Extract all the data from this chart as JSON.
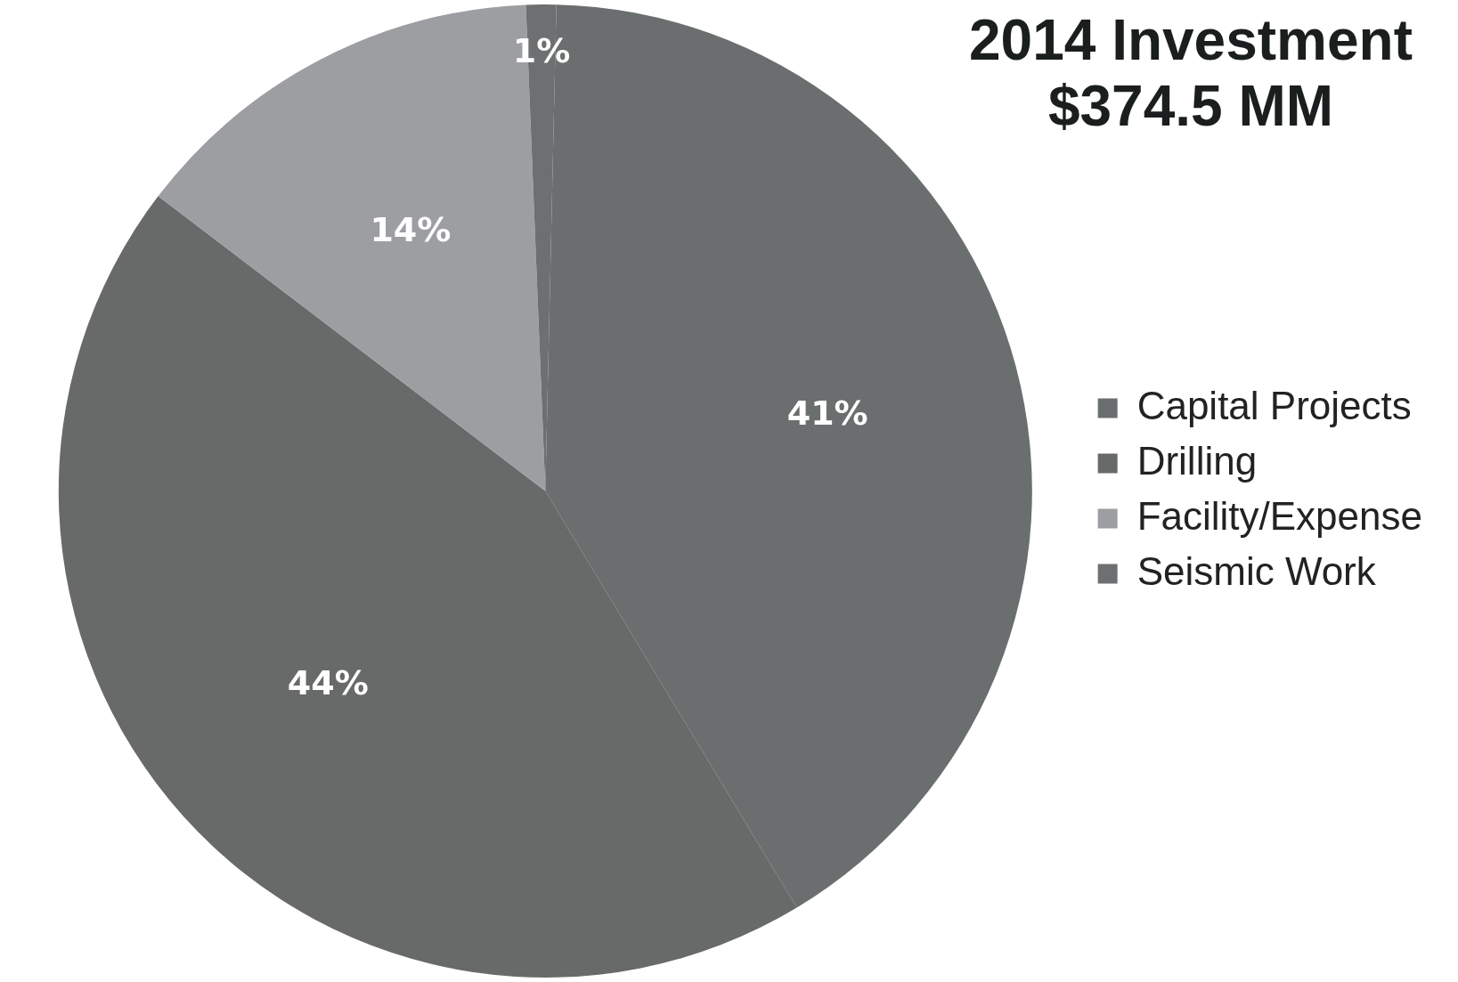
{
  "chart_data": {
    "type": "pie",
    "title": "2014 Investment\n$374.5 MM",
    "categories": [
      "Capital Projects",
      "Drilling",
      "Facility/Expense",
      "Seismic Work"
    ],
    "values": [
      41,
      44,
      14,
      1
    ],
    "colors": [
      "#6b6e6e",
      "#676a69",
      "#9c9ea2",
      "#6d6f70"
    ],
    "value_labels": [
      "41%",
      "44%",
      "14%",
      "1%"
    ],
    "legend": "right"
  }
}
